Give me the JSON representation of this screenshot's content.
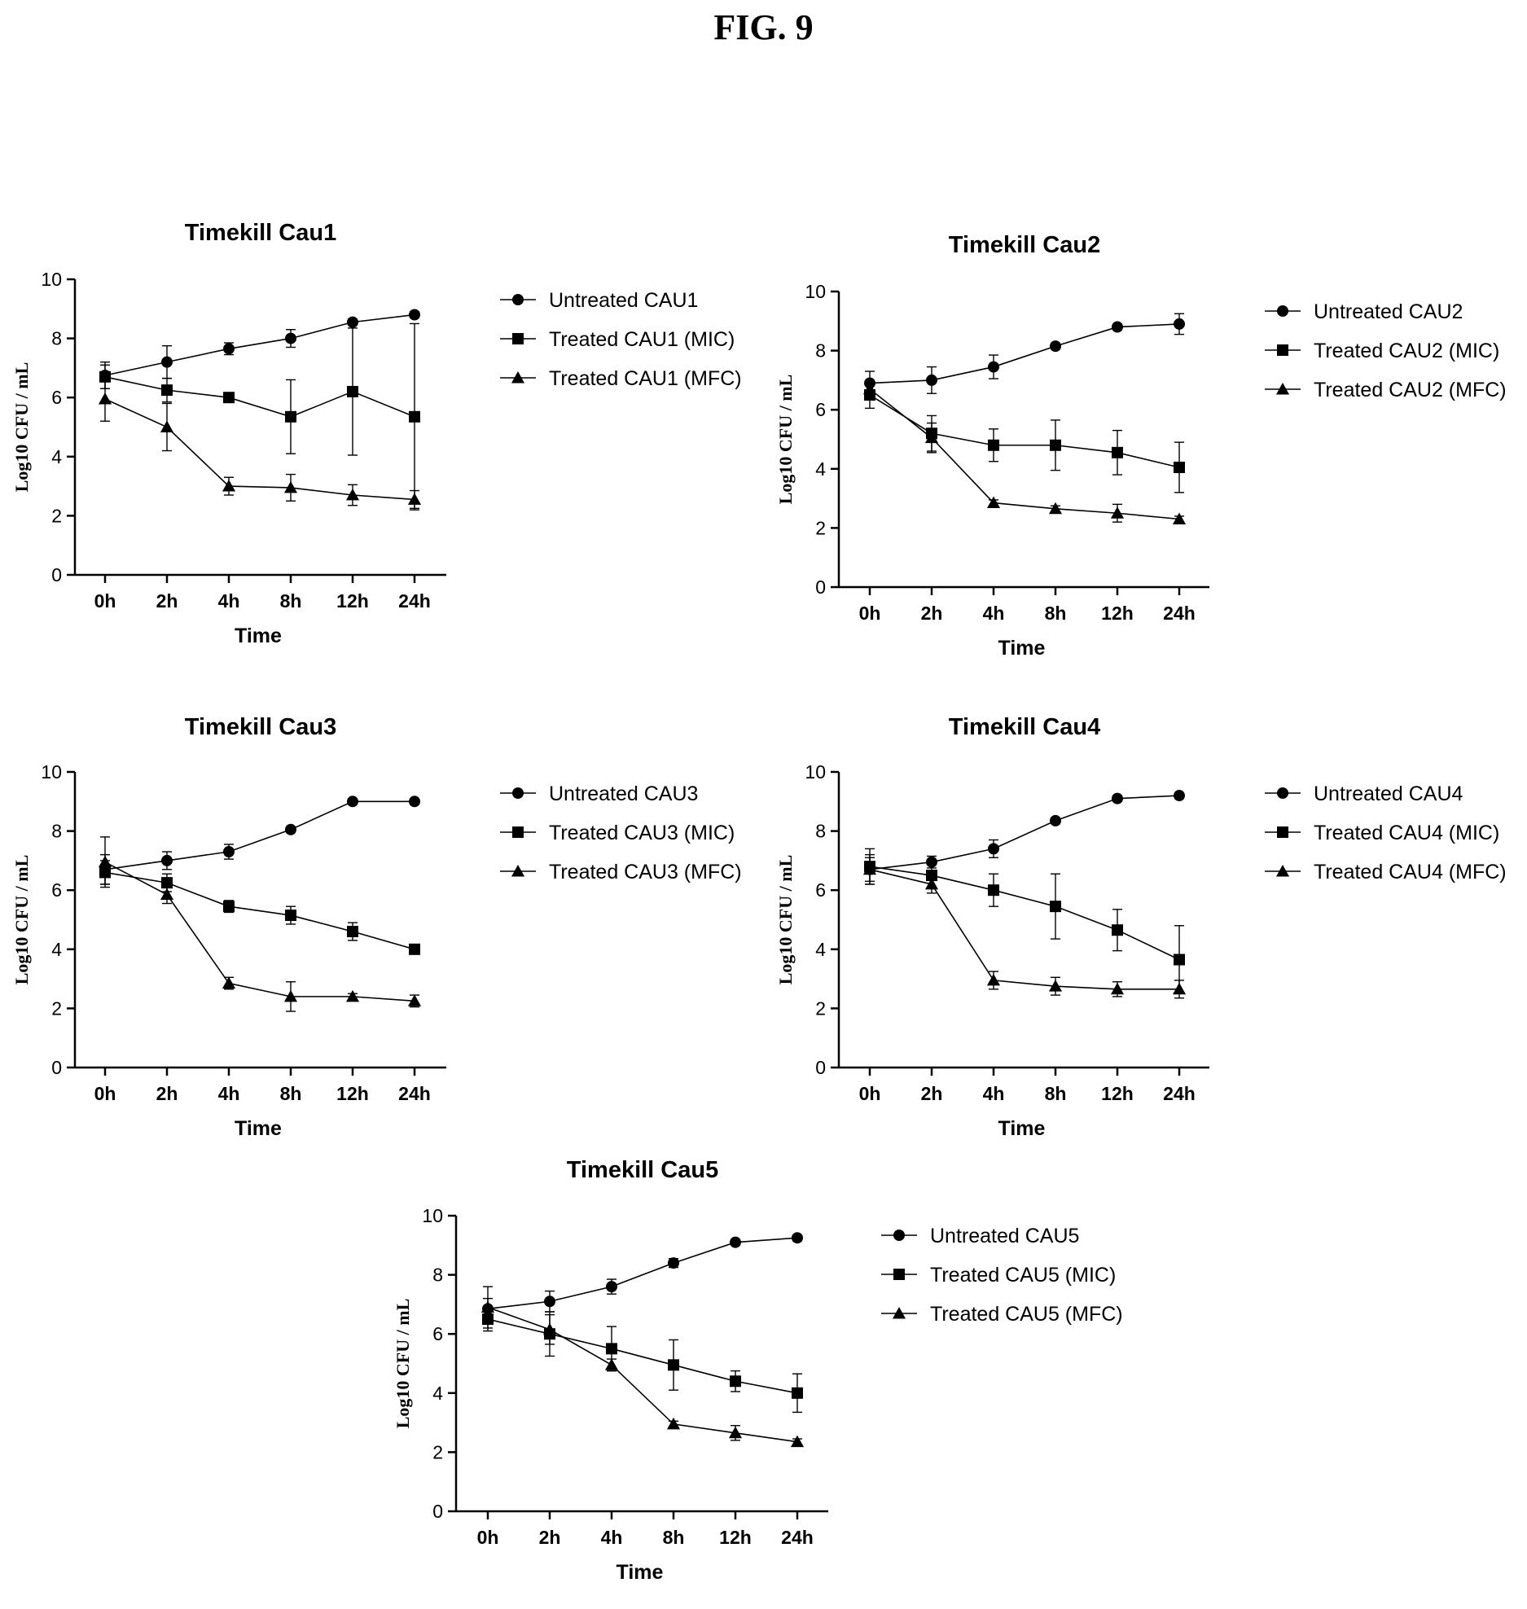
{
  "figure_title": "FIG. 9",
  "chart_data": [
    {
      "type": "line",
      "title": "Timekill Cau1",
      "xlabel": "Time",
      "ylabel": "Log10 CFU / mL",
      "categories": [
        "0h",
        "2h",
        "4h",
        "8h",
        "12h",
        "24h"
      ],
      "ylim": [
        0,
        10
      ],
      "yticks": [
        0,
        2,
        4,
        6,
        8,
        10
      ],
      "legend_position": "right",
      "series": [
        {
          "name": "Untreated CAU1",
          "marker": "circle",
          "values": [
            6.75,
            7.2,
            7.65,
            8.0,
            8.55,
            8.8
          ],
          "errors": [
            0.45,
            0.55,
            0.2,
            0.3,
            0.1,
            0.1
          ]
        },
        {
          "name": "Treated CAU1 (MIC)",
          "marker": "square",
          "values": [
            6.7,
            6.25,
            6.0,
            5.35,
            6.2,
            5.35
          ],
          "errors": [
            0.4,
            0.4,
            0.1,
            1.25,
            2.15,
            3.15
          ]
        },
        {
          "name": "Treated CAU1 (MFC)",
          "marker": "triangle",
          "values": [
            5.95,
            5.0,
            3.0,
            2.95,
            2.7,
            2.55
          ],
          "errors": [
            0.75,
            0.8,
            0.3,
            0.45,
            0.35,
            0.3
          ]
        }
      ]
    },
    {
      "type": "line",
      "title": "Timekill Cau2",
      "xlabel": "Time",
      "ylabel": "Log10 CFU / mL",
      "categories": [
        "0h",
        "2h",
        "4h",
        "8h",
        "12h",
        "24h"
      ],
      "ylim": [
        0,
        10
      ],
      "yticks": [
        0,
        2,
        4,
        6,
        8,
        10
      ],
      "legend_position": "right",
      "series": [
        {
          "name": "Untreated CAU2",
          "marker": "circle",
          "values": [
            6.9,
            7.0,
            7.45,
            8.15,
            8.8,
            8.9
          ],
          "errors": [
            0.4,
            0.45,
            0.4,
            0.1,
            0.1,
            0.35
          ]
        },
        {
          "name": "Treated CAU2 (MIC)",
          "marker": "square",
          "values": [
            6.5,
            5.2,
            4.8,
            4.8,
            4.55,
            4.05
          ],
          "errors": [
            0.45,
            0.6,
            0.55,
            0.85,
            0.75,
            0.85
          ]
        },
        {
          "name": "Treated CAU2 (MFC)",
          "marker": "triangle",
          "values": [
            6.7,
            5.05,
            2.85,
            2.65,
            2.5,
            2.3
          ],
          "errors": [
            0.3,
            0.5,
            0.1,
            0.1,
            0.3,
            0.1
          ]
        }
      ]
    },
    {
      "type": "line",
      "title": "Timekill Cau3",
      "xlabel": "Time",
      "ylabel": "Log10 CFU / mL",
      "categories": [
        "0h",
        "2h",
        "4h",
        "8h",
        "12h",
        "24h"
      ],
      "ylim": [
        0,
        10
      ],
      "yticks": [
        0,
        2,
        4,
        6,
        8,
        10
      ],
      "legend_position": "right",
      "series": [
        {
          "name": "Untreated CAU3",
          "marker": "circle",
          "values": [
            6.7,
            7.0,
            7.3,
            8.05,
            9.0,
            9.0
          ],
          "errors": [
            0.5,
            0.3,
            0.25,
            0.1,
            0.1,
            0.1
          ]
        },
        {
          "name": "Treated CAU3 (MIC)",
          "marker": "square",
          "values": [
            6.6,
            6.25,
            5.45,
            5.15,
            4.6,
            4.0
          ],
          "errors": [
            0.4,
            0.3,
            0.2,
            0.3,
            0.3,
            0.1
          ]
        },
        {
          "name": "Treated CAU3 (MFC)",
          "marker": "triangle",
          "values": [
            6.95,
            5.85,
            2.85,
            2.4,
            2.4,
            2.25
          ],
          "errors": [
            0.85,
            0.3,
            0.2,
            0.5,
            0.1,
            0.2
          ]
        }
      ]
    },
    {
      "type": "line",
      "title": "Timekill Cau4",
      "xlabel": "Time",
      "ylabel": "Log10 CFU / mL",
      "categories": [
        "0h",
        "2h",
        "4h",
        "8h",
        "12h",
        "24h"
      ],
      "ylim": [
        0,
        10
      ],
      "yticks": [
        0,
        2,
        4,
        6,
        8,
        10
      ],
      "legend_position": "right",
      "series": [
        {
          "name": "Untreated CAU4",
          "marker": "circle",
          "values": [
            6.7,
            6.95,
            7.4,
            8.35,
            9.1,
            9.2
          ],
          "errors": [
            0.5,
            0.2,
            0.3,
            0.1,
            0.1,
            0.1
          ]
        },
        {
          "name": "Treated CAU4 (MIC)",
          "marker": "square",
          "values": [
            6.8,
            6.5,
            6.0,
            5.45,
            4.65,
            3.65
          ],
          "errors": [
            0.6,
            0.4,
            0.55,
            1.1,
            0.7,
            1.15
          ]
        },
        {
          "name": "Treated CAU4 (MFC)",
          "marker": "triangle",
          "values": [
            6.7,
            6.2,
            2.95,
            2.75,
            2.65,
            2.65
          ],
          "errors": [
            0.4,
            0.3,
            0.3,
            0.3,
            0.25,
            0.3
          ]
        }
      ]
    },
    {
      "type": "line",
      "title": "Timekill Cau5",
      "xlabel": "Time",
      "ylabel": "Log10 CFU / mL",
      "categories": [
        "0h",
        "2h",
        "4h",
        "8h",
        "12h",
        "24h"
      ],
      "ylim": [
        0,
        10
      ],
      "yticks": [
        0,
        2,
        4,
        6,
        8,
        10
      ],
      "legend_position": "right",
      "series": [
        {
          "name": "Untreated CAU5",
          "marker": "circle",
          "values": [
            6.85,
            7.1,
            7.6,
            8.4,
            9.1,
            9.25
          ],
          "errors": [
            0.75,
            0.35,
            0.25,
            0.15,
            0.1,
            0.1
          ]
        },
        {
          "name": "Treated CAU5 (MIC)",
          "marker": "square",
          "values": [
            6.5,
            6.0,
            5.5,
            4.95,
            4.4,
            4.0
          ],
          "errors": [
            0.3,
            0.75,
            0.75,
            0.85,
            0.35,
            0.65
          ]
        },
        {
          "name": "Treated CAU5 (MFC)",
          "marker": "triangle",
          "values": [
            6.9,
            6.15,
            4.95,
            2.95,
            2.65,
            2.35
          ],
          "errors": [
            0.3,
            0.5,
            0.2,
            0.1,
            0.25,
            0.1
          ]
        }
      ]
    }
  ]
}
